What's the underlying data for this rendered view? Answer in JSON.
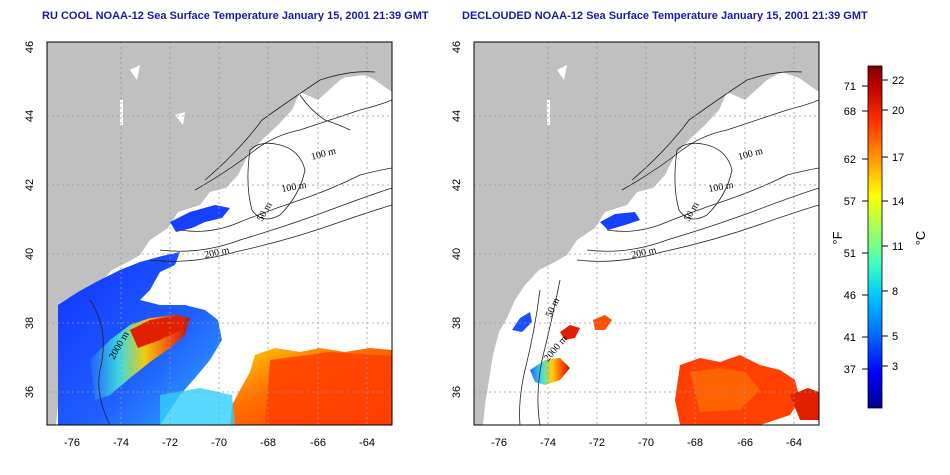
{
  "panels": [
    {
      "title": "RU COOL NOAA-12 Sea Surface Temperature January 15, 2001 21:39 GMT"
    },
    {
      "title": "DECLOUDED NOAA-12 Sea Surface Temperature January 15, 2001 21:39 GMT"
    }
  ],
  "map": {
    "lon_range": [
      -77,
      -63
    ],
    "lat_range": [
      35,
      46
    ],
    "x_ticks": [
      "-76",
      "-74",
      "-72",
      "-70",
      "-68",
      "-66",
      "-64"
    ],
    "y_ticks": [
      "46",
      "44",
      "42",
      "40",
      "38",
      "36"
    ],
    "contour_labels": [
      "100 m",
      "100 m",
      "50 m",
      "200 m"
    ],
    "left_contour_label_extra": "2000 m",
    "right_contour_labels_extra": [
      "50 m",
      "2000 m"
    ],
    "colors": {
      "land": "#c0c0c0",
      "ocean": "#ffffff",
      "contour": "#222222",
      "grid": "#999999",
      "title": "#1a1aa6"
    }
  },
  "colorbar": {
    "fahrenheit_unit": "°F",
    "celsius_unit": "°C",
    "fahrenheit_ticks": [
      "71",
      "68",
      "62",
      "57",
      "51",
      "46",
      "41",
      "37"
    ],
    "celsius_ticks": [
      "22",
      "20",
      "17",
      "14",
      "11",
      "8",
      "5",
      "3"
    ],
    "gradient": [
      "#00008f",
      "#0000ff",
      "#0070ff",
      "#00c8ff",
      "#40ffc0",
      "#a0ff60",
      "#ffff00",
      "#ffa000",
      "#ff3000",
      "#c00000",
      "#800000"
    ]
  }
}
